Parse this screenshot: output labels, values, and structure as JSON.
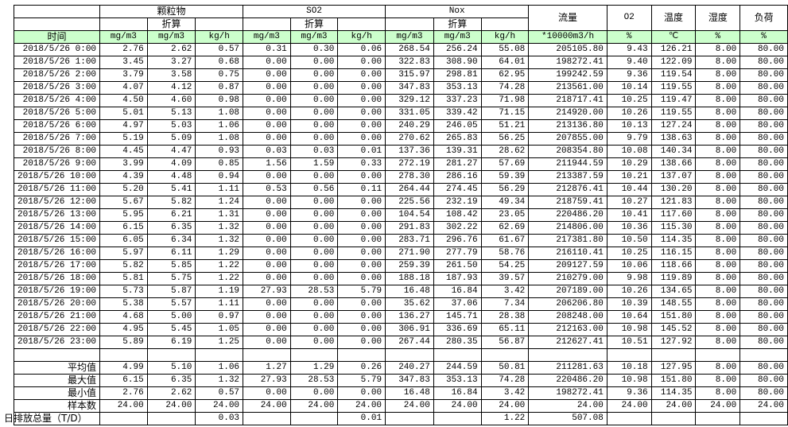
{
  "header": {
    "groups": [
      "颗粒物",
      "SO2",
      "Nox"
    ],
    "converted_label": "折算",
    "flow": "流量",
    "o2": "O2",
    "temp": "温度",
    "humidity": "湿度",
    "load": "负荷",
    "time": "时间",
    "units": [
      "mg/m3",
      "mg/m3",
      "kg/h",
      "mg/m3",
      "mg/m3",
      "kg/h",
      "mg/m3",
      "mg/m3",
      "kg/h",
      "*10000m3/h",
      "%",
      "℃",
      "%",
      "%"
    ]
  },
  "rows": [
    [
      "2018/5/26 0:00",
      "2.76",
      "2.62",
      "0.57",
      "0.31",
      "0.30",
      "0.06",
      "268.54",
      "256.24",
      "55.08",
      "205105.80",
      "9.43",
      "126.21",
      "8.00",
      "80.00"
    ],
    [
      "2018/5/26 1:00",
      "3.45",
      "3.27",
      "0.68",
      "0.00",
      "0.00",
      "0.00",
      "322.83",
      "308.90",
      "64.01",
      "198272.41",
      "9.40",
      "122.09",
      "8.00",
      "80.00"
    ],
    [
      "2018/5/26 2:00",
      "3.79",
      "3.58",
      "0.75",
      "0.00",
      "0.00",
      "0.00",
      "315.97",
      "298.81",
      "62.95",
      "199242.59",
      "9.36",
      "119.54",
      "8.00",
      "80.00"
    ],
    [
      "2018/5/26 3:00",
      "4.07",
      "4.12",
      "0.87",
      "0.00",
      "0.00",
      "0.00",
      "347.83",
      "353.13",
      "74.28",
      "213561.00",
      "10.14",
      "119.55",
      "8.00",
      "80.00"
    ],
    [
      "2018/5/26 4:00",
      "4.50",
      "4.60",
      "0.98",
      "0.00",
      "0.00",
      "0.00",
      "329.12",
      "337.23",
      "71.98",
      "218717.41",
      "10.25",
      "119.47",
      "8.00",
      "80.00"
    ],
    [
      "2018/5/26 5:00",
      "5.01",
      "5.13",
      "1.08",
      "0.00",
      "0.00",
      "0.00",
      "331.05",
      "339.42",
      "71.15",
      "214920.00",
      "10.26",
      "119.55",
      "8.00",
      "80.00"
    ],
    [
      "2018/5/26 6:00",
      "4.97",
      "5.03",
      "1.06",
      "0.00",
      "0.00",
      "0.00",
      "240.29",
      "246.05",
      "51.21",
      "213136.80",
      "10.13",
      "127.24",
      "8.00",
      "80.00"
    ],
    [
      "2018/5/26 7:00",
      "5.19",
      "5.09",
      "1.08",
      "0.00",
      "0.00",
      "0.00",
      "270.62",
      "265.83",
      "56.25",
      "207855.00",
      "9.79",
      "138.63",
      "8.00",
      "80.00"
    ],
    [
      "2018/5/26 8:00",
      "4.45",
      "4.47",
      "0.93",
      "0.03",
      "0.03",
      "0.01",
      "137.36",
      "139.31",
      "28.62",
      "208354.80",
      "10.08",
      "140.34",
      "8.00",
      "80.00"
    ],
    [
      "2018/5/26 9:00",
      "3.99",
      "4.09",
      "0.85",
      "1.56",
      "1.59",
      "0.33",
      "272.19",
      "281.27",
      "57.69",
      "211944.59",
      "10.29",
      "138.66",
      "8.00",
      "80.00"
    ],
    [
      "2018/5/26 10:00",
      "4.39",
      "4.48",
      "0.94",
      "0.00",
      "0.00",
      "0.00",
      "278.30",
      "286.16",
      "59.39",
      "213387.59",
      "10.21",
      "137.07",
      "8.00",
      "80.00"
    ],
    [
      "2018/5/26 11:00",
      "5.20",
      "5.41",
      "1.11",
      "0.53",
      "0.56",
      "0.11",
      "264.44",
      "274.45",
      "56.29",
      "212876.41",
      "10.44",
      "130.20",
      "8.00",
      "80.00"
    ],
    [
      "2018/5/26 12:00",
      "5.67",
      "5.82",
      "1.24",
      "0.00",
      "0.00",
      "0.00",
      "225.56",
      "232.19",
      "49.34",
      "218759.41",
      "10.27",
      "121.83",
      "8.00",
      "80.00"
    ],
    [
      "2018/5/26 13:00",
      "5.95",
      "6.21",
      "1.31",
      "0.00",
      "0.00",
      "0.00",
      "104.54",
      "108.42",
      "23.05",
      "220486.20",
      "10.41",
      "117.60",
      "8.00",
      "80.00"
    ],
    [
      "2018/5/26 14:00",
      "6.15",
      "6.35",
      "1.32",
      "0.00",
      "0.00",
      "0.00",
      "291.83",
      "302.22",
      "62.69",
      "214806.00",
      "10.36",
      "115.30",
      "8.00",
      "80.00"
    ],
    [
      "2018/5/26 15:00",
      "6.05",
      "6.34",
      "1.32",
      "0.00",
      "0.00",
      "0.00",
      "283.71",
      "296.76",
      "61.67",
      "217381.80",
      "10.50",
      "114.35",
      "8.00",
      "80.00"
    ],
    [
      "2018/5/26 16:00",
      "5.97",
      "6.11",
      "1.29",
      "0.00",
      "0.00",
      "0.00",
      "271.90",
      "277.79",
      "58.76",
      "216110.41",
      "10.25",
      "116.15",
      "8.00",
      "80.00"
    ],
    [
      "2018/5/26 17:00",
      "5.82",
      "5.85",
      "1.22",
      "0.00",
      "0.00",
      "0.00",
      "259.39",
      "261.50",
      "54.25",
      "209127.59",
      "10.06",
      "118.66",
      "8.00",
      "80.00"
    ],
    [
      "2018/5/26 18:00",
      "5.81",
      "5.75",
      "1.22",
      "0.00",
      "0.00",
      "0.00",
      "188.18",
      "187.93",
      "39.57",
      "210279.00",
      "9.98",
      "119.89",
      "8.00",
      "80.00"
    ],
    [
      "2018/5/26 19:00",
      "5.73",
      "5.87",
      "1.19",
      "27.93",
      "28.53",
      "5.79",
      "16.48",
      "16.84",
      "3.42",
      "207189.00",
      "10.26",
      "134.65",
      "8.00",
      "80.00"
    ],
    [
      "2018/5/26 20:00",
      "5.38",
      "5.57",
      "1.11",
      "0.00",
      "0.00",
      "0.00",
      "35.62",
      "37.06",
      "7.34",
      "206206.80",
      "10.39",
      "148.55",
      "8.00",
      "80.00"
    ],
    [
      "2018/5/26 21:00",
      "4.68",
      "5.00",
      "0.97",
      "0.00",
      "0.00",
      "0.00",
      "136.27",
      "145.71",
      "28.38",
      "208248.00",
      "10.64",
      "151.80",
      "8.00",
      "80.00"
    ],
    [
      "2018/5/26 22:00",
      "4.95",
      "5.45",
      "1.05",
      "0.00",
      "0.00",
      "0.00",
      "306.91",
      "336.69",
      "65.11",
      "212163.00",
      "10.98",
      "145.52",
      "8.00",
      "80.00"
    ],
    [
      "2018/5/26 23:00",
      "5.89",
      "6.19",
      "1.25",
      "0.00",
      "0.00",
      "0.00",
      "267.44",
      "280.35",
      "56.87",
      "212627.41",
      "10.51",
      "127.92",
      "8.00",
      "80.00"
    ]
  ],
  "summary": [
    [
      "平均值",
      "4.99",
      "5.10",
      "1.06",
      "1.27",
      "1.29",
      "0.26",
      "240.27",
      "244.59",
      "50.81",
      "211281.63",
      "10.18",
      "127.95",
      "8.00",
      "80.00"
    ],
    [
      "最大值",
      "6.15",
      "6.35",
      "1.32",
      "27.93",
      "28.53",
      "5.79",
      "347.83",
      "353.13",
      "74.28",
      "220486.20",
      "10.98",
      "151.80",
      "8.00",
      "80.00"
    ],
    [
      "最小值",
      "2.76",
      "2.62",
      "0.57",
      "0.00",
      "0.00",
      "0.00",
      "16.48",
      "16.84",
      "3.42",
      "198272.41",
      "9.36",
      "114.35",
      "8.00",
      "80.00"
    ],
    [
      "样本数",
      "24.00",
      "24.00",
      "24.00",
      "24.00",
      "24.00",
      "24.00",
      "24.00",
      "24.00",
      "24.00",
      "24.00",
      "24.00",
      "24.00",
      "24.00",
      "24.00"
    ],
    [
      "日排放总量（T/D）",
      "",
      "",
      "0.03",
      "",
      "",
      "0.01",
      "",
      "",
      "1.22",
      "507.08",
      "",
      "",
      "",
      ""
    ]
  ],
  "colors": {
    "unit_row_bg": "#ccffcc",
    "grid": "#000000"
  }
}
